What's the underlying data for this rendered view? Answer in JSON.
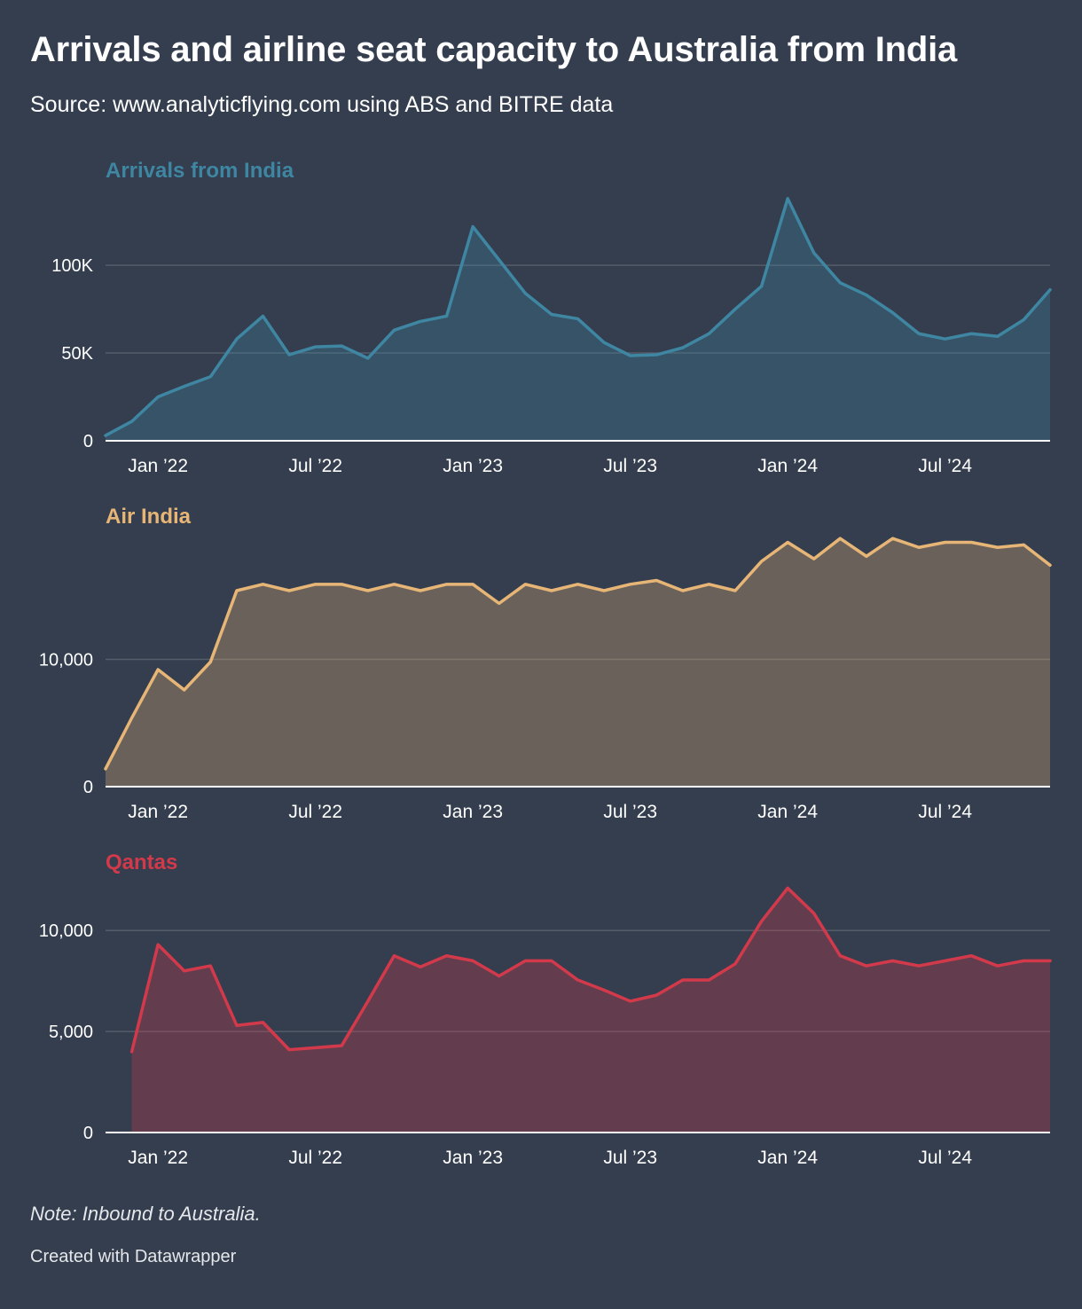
{
  "header": {
    "title": "Arrivals and airline seat capacity to Australia from India",
    "subtitle": "Source: www.analyticflying.com using ABS and BITRE data"
  },
  "footer": {
    "note": "Note: Inbound to Australia.",
    "credit": "Created with Datawrapper"
  },
  "colors": {
    "background": "#343e4e",
    "arrivals": "#3e86a2",
    "air_india": "#e7b677",
    "qantas": "#d23a4b"
  },
  "chart_data": [
    {
      "type": "area",
      "title": "Arrivals from India",
      "x_start": "2021-11",
      "x_ticks": [
        "Jan ’22",
        "Jul ’22",
        "Jan ’23",
        "Jul ’23",
        "Jan ’24",
        "Jul ’24"
      ],
      "x_tick_months": [
        "2022-01",
        "2022-07",
        "2023-01",
        "2023-07",
        "2024-01",
        "2024-07"
      ],
      "x_end": "2024-12",
      "y_ticks": [
        0,
        50000,
        100000
      ],
      "y_tick_labels": [
        "0",
        "50K",
        "100K"
      ],
      "ylim": [
        0,
        145000
      ],
      "grid": true,
      "series": [
        {
          "values": [
            3000,
            11000,
            25000,
            31000,
            36500,
            58000,
            71000,
            49000,
            53500,
            54000,
            47000,
            63000,
            68000,
            71000,
            122000,
            103000,
            84000,
            72000,
            69500,
            56000,
            48500,
            49000,
            53000,
            61000,
            75000,
            88000,
            138000,
            107000,
            90000,
            83000,
            73000,
            61000,
            58000,
            61000,
            59500,
            69000,
            86000
          ]
        }
      ]
    },
    {
      "type": "area",
      "title": "Air India",
      "x_start": "2021-11",
      "x_ticks": [
        "Jan ’22",
        "Jul ’22",
        "Jan ’23",
        "Jul ’23",
        "Jan ’24",
        "Jul ’24"
      ],
      "x_tick_months": [
        "2022-01",
        "2022-07",
        "2023-01",
        "2023-07",
        "2024-01",
        "2024-07"
      ],
      "x_end": "2024-12",
      "y_ticks": [
        0,
        10000
      ],
      "y_tick_labels": [
        "0",
        "10,000"
      ],
      "ylim": [
        0,
        20000
      ],
      "grid": true,
      "series": [
        {
          "values": [
            1400,
            5400,
            9200,
            7600,
            9800,
            15400,
            15900,
            15400,
            15900,
            15900,
            15400,
            15900,
            15400,
            15900,
            15900,
            14400,
            15900,
            15400,
            15900,
            15400,
            15900,
            16200,
            15400,
            15900,
            15400,
            17700,
            19200,
            17900,
            19500,
            18100,
            19500,
            18800,
            19200,
            19200,
            18800,
            19000,
            17400
          ]
        }
      ]
    },
    {
      "type": "area",
      "title": "Qantas",
      "x_start": "2021-11",
      "x_ticks": [
        "Jan ’22",
        "Jul ’22",
        "Jan ’23",
        "Jul ’23",
        "Jan ’24",
        "Jul ’24"
      ],
      "x_tick_months": [
        "2022-01",
        "2022-07",
        "2023-01",
        "2023-07",
        "2024-01",
        "2024-07"
      ],
      "x_end": "2024-12",
      "y_ticks": [
        0,
        5000,
        10000
      ],
      "y_tick_labels": [
        "0",
        "5,000",
        "10,000"
      ],
      "ylim": [
        0,
        12600
      ],
      "grid": true,
      "series": [
        {
          "values": [
            null,
            4000,
            9300,
            8000,
            8250,
            5300,
            5450,
            4100,
            4200,
            4300,
            6500,
            8750,
            8200,
            8750,
            8500,
            7750,
            8500,
            8500,
            7550,
            7050,
            6500,
            6800,
            7550,
            7550,
            8350,
            10450,
            12100,
            10850,
            8750,
            8250,
            8500,
            8250,
            8500,
            8750,
            8250,
            8500,
            8500
          ]
        }
      ]
    }
  ]
}
